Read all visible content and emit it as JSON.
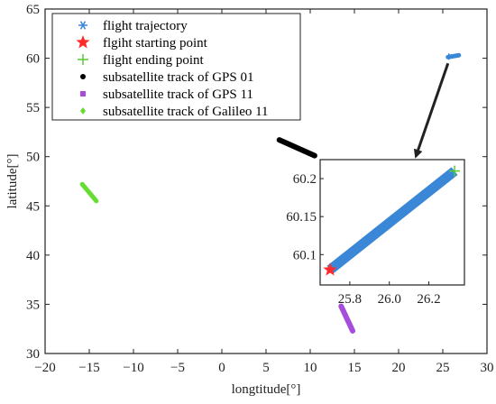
{
  "chart_data": {
    "type": "scatter",
    "xlabel": "longtitude[°]",
    "ylabel": "latitude[°]",
    "xlim": [
      -20,
      30
    ],
    "ylim": [
      30,
      65
    ],
    "xticks": [
      "−20",
      "−15",
      "−10",
      "−5",
      "0",
      "5",
      "10",
      "15",
      "20",
      "25",
      "30"
    ],
    "yticks": [
      "30",
      "35",
      "40",
      "45",
      "50",
      "55",
      "60",
      "65"
    ],
    "series": [
      {
        "name": "flight trajectory",
        "marker": "asterisk",
        "color": "#3a87d8",
        "x": [
          25.7,
          26.3
        ],
        "y": [
          60.08,
          60.21
        ]
      },
      {
        "name": "flgiht starting point",
        "marker": "star",
        "color": "#ff2a2a",
        "x": [
          25.7
        ],
        "y": [
          60.08
        ]
      },
      {
        "name": "flight ending point",
        "marker": "plus",
        "color": "#55cc33",
        "x": [
          26.33
        ],
        "y": [
          60.21
        ]
      },
      {
        "name": "subsatellite track of GPS 01",
        "marker": "dot",
        "color": "#000000",
        "x": [
          6.5,
          10.5
        ],
        "y": [
          51.7,
          50.1
        ]
      },
      {
        "name": "subsatellite track of GPS 11",
        "marker": "square",
        "color": "#a64ddb",
        "x": [
          13.5,
          14.8
        ],
        "y": [
          34.8,
          32.3
        ]
      },
      {
        "name": "subsatellite track of Galileo 11",
        "marker": "diamond",
        "color": "#66dd33",
        "x": [
          -15.8,
          -14.2
        ],
        "y": [
          47.2,
          45.5
        ]
      }
    ],
    "inset": {
      "xlim": [
        25.65,
        26.38
      ],
      "ylim": [
        60.06,
        60.225
      ],
      "xticks": [
        25.8,
        26.0,
        26.2
      ],
      "xtick_labels": [
        "25.8",
        "26.0",
        "26.2"
      ],
      "yticks": [
        60.1,
        60.15,
        60.2
      ],
      "ytick_labels": [
        "60.1",
        "60.15",
        "60.2"
      ],
      "line": {
        "x": [
          25.7,
          26.33
        ],
        "y": [
          60.08,
          60.21
        ],
        "color": "#3a87d8"
      },
      "start": {
        "x": 25.7,
        "y": 60.08
      },
      "end": {
        "x": 26.33,
        "y": 60.21
      }
    }
  }
}
